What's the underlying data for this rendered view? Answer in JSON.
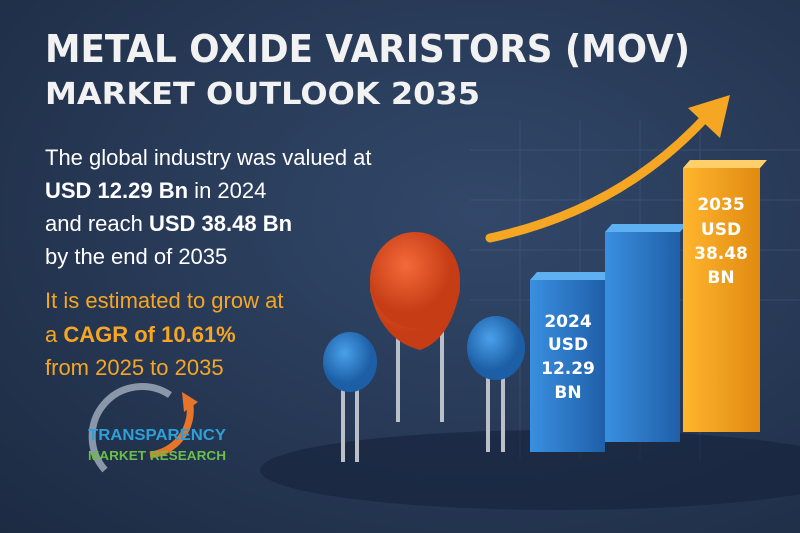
{
  "header": {
    "title_line1": "METAL OXIDE VARISTORS (MOV)",
    "title_line2": "MARKET OUTLOOK 2035"
  },
  "summary": {
    "line1": "The global industry was valued at",
    "value_2024": "USD 12.29 Bn",
    "year_text": " in 2024",
    "reach_text": "and reach ",
    "value_2035": "USD 38.48 Bn",
    "line4": "by the end of 2035"
  },
  "growth": {
    "line1": "It is estimated to grow at",
    "prefix": "a ",
    "cagr": "CAGR of 10.61%",
    "line3": "from 2025 to 2035"
  },
  "bars": [
    {
      "year": "2024",
      "currency": "USD",
      "amount": "12.29",
      "unit": "BN"
    },
    {
      "year": "2035",
      "currency": "USD",
      "amount": "38.48",
      "unit": "BN"
    }
  ],
  "logo": {
    "line1": "TRANSPARENCY",
    "line2": "MARKET RESEARCH"
  }
}
